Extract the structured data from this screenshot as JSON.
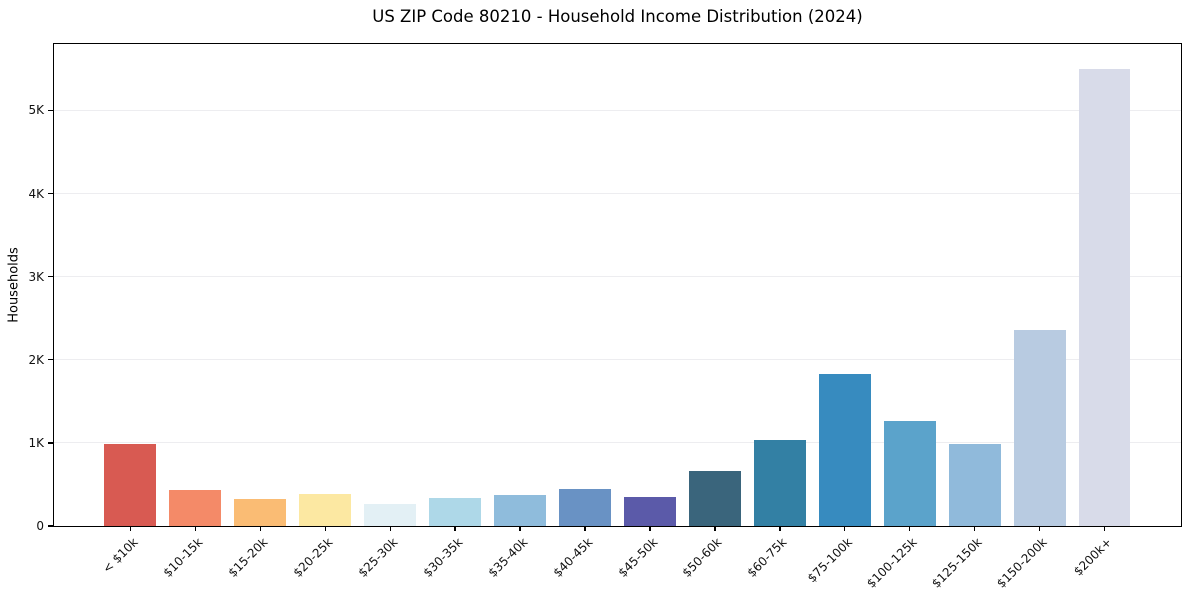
{
  "chart_data": {
    "type": "bar",
    "title": "US ZIP Code 80210 - Household Income Distribution (2024)",
    "xlabel": "",
    "ylabel": "Households",
    "categories": [
      "< $10k",
      "$10-15k",
      "$15-20k",
      "$20-25k",
      "$25-30k",
      "$30-35k",
      "$35-40k",
      "$40-45k",
      "$45-50k",
      "$50-60k",
      "$60-75k",
      "$75-100k",
      "$100-125k",
      "$125-150k",
      "$150-200k",
      "$200k+"
    ],
    "values": [
      985,
      430,
      327,
      390,
      267,
      340,
      370,
      450,
      345,
      667,
      1036,
      1833,
      1260,
      992,
      2353,
      5500
    ],
    "bar_colors": [
      "#d85a52",
      "#f48a68",
      "#fabc74",
      "#fce8a2",
      "#e3f0f5",
      "#aed8e8",
      "#8fbcdc",
      "#6992c4",
      "#5b5aa9",
      "#3a657c",
      "#3380a4",
      "#378bbf",
      "#5ba3cb",
      "#90badb",
      "#b8cbe1",
      "#d8dbe9"
    ],
    "yticks": [
      {
        "label": "0",
        "value": 0
      },
      {
        "label": "1K",
        "value": 1000
      },
      {
        "label": "2K",
        "value": 2000
      },
      {
        "label": "3K",
        "value": 3000
      },
      {
        "label": "4K",
        "value": 4000
      },
      {
        "label": "5K",
        "value": 5000
      }
    ],
    "ylim": [
      0,
      5800
    ],
    "grid": "horizontal",
    "legend": "none",
    "background_color": "#ffffff",
    "gridline_color": "#ededf0"
  }
}
